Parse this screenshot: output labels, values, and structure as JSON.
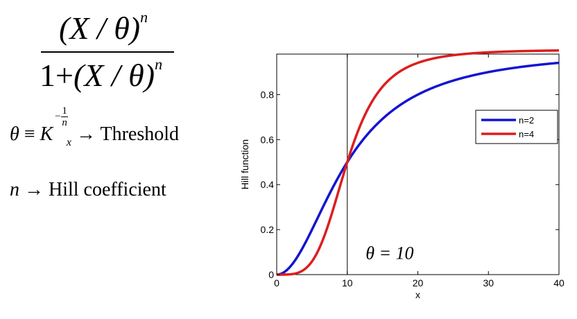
{
  "formula": {
    "numerator": "(X / θ)",
    "denominator_prefix": "1+",
    "denominator": "(X / θ)",
    "exponent": "n"
  },
  "definitions": {
    "theta_symbol": "θ",
    "equiv": "≡",
    "K": "K",
    "K_sub": "x",
    "exp_minus": "−",
    "exp_num": "1",
    "exp_den": "n",
    "arrow": "→",
    "threshold_label": "Threshold",
    "n_symbol": "n",
    "hill_label": "Hill coefficient"
  },
  "chart_data": {
    "type": "line",
    "xlabel": "x",
    "ylabel": "Hill function",
    "xlim": [
      0,
      40
    ],
    "ylim": [
      0,
      0.98
    ],
    "x_ticks": [
      0,
      10,
      20,
      30,
      40
    ],
    "y_ticks": [
      0,
      0.2,
      0.4,
      0.6,
      0.8
    ],
    "y_tick_labels": [
      "0",
      "0.2",
      "0.4",
      "0.6",
      "0.8"
    ],
    "threshold": 10,
    "vline_x": 10,
    "annotation": "θ = 10",
    "legend_position": "right",
    "grid": false,
    "series": [
      {
        "name": "n=2",
        "color": "#1414d2",
        "n": 2,
        "x": [
          0,
          2,
          4,
          6,
          8,
          10,
          12,
          14,
          16,
          18,
          20,
          25,
          30,
          35,
          40
        ],
        "y": [
          0,
          0.038,
          0.138,
          0.265,
          0.39,
          0.5,
          0.59,
          0.662,
          0.719,
          0.764,
          0.8,
          0.862,
          0.9,
          0.925,
          0.941
        ]
      },
      {
        "name": "n=4",
        "color": "#dc1e1e",
        "n": 4,
        "x": [
          0,
          2,
          4,
          6,
          8,
          10,
          12,
          14,
          16,
          18,
          20,
          25,
          30,
          35,
          40
        ],
        "y": [
          0,
          0.002,
          0.025,
          0.115,
          0.291,
          0.5,
          0.675,
          0.793,
          0.868,
          0.913,
          0.941,
          0.975,
          0.988,
          0.993,
          0.996
        ]
      }
    ]
  }
}
